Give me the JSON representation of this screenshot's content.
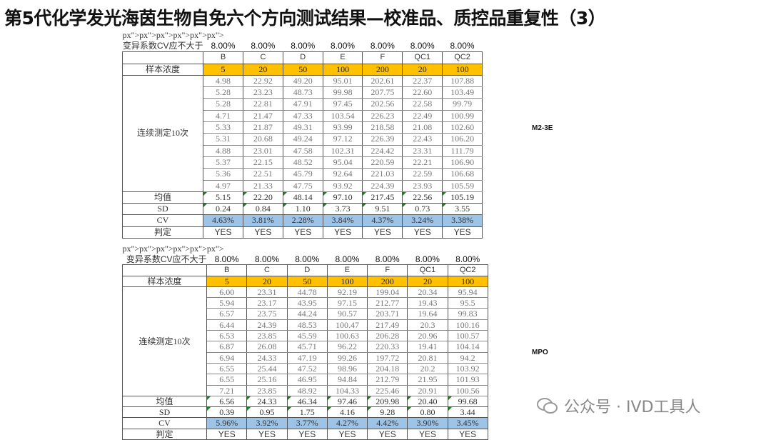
{
  "title": "第5代化学发光海茵生物自免六个方向测试结果—校准品、质控品重复性（3）",
  "watermark": "公众号 · IVD工具人",
  "tables": [
    {
      "side_label": "M2-3E",
      "cv_limit_label": "变异系数CV应不大于",
      "cv_limits": [
        "8.00%",
        "8.00%",
        "8.00%",
        "8.00%",
        "8.00%",
        "8.00%",
        "8.00%"
      ],
      "columns": [
        "B",
        "C",
        "D",
        "E",
        "F",
        "QC1",
        "QC2"
      ],
      "conc_label": "样本浓度",
      "concentrations": [
        "5",
        "20",
        "50",
        "100",
        "200",
        "20",
        "100"
      ],
      "repeat_label": "连续测定10次",
      "rows": [
        [
          "4.98",
          "22.92",
          "49.20",
          "95.01",
          "202.61",
          "22.37",
          "107.88"
        ],
        [
          "5.28",
          "23.23",
          "48.73",
          "99.98",
          "207.75",
          "22.60",
          "103.49"
        ],
        [
          "5.28",
          "22.81",
          "47.91",
          "97.45",
          "202.56",
          "22.58",
          "99.79"
        ],
        [
          "4.71",
          "21.47",
          "47.33",
          "103.54",
          "226.23",
          "22.49",
          "100.99"
        ],
        [
          "5.33",
          "21.87",
          "49.31",
          "93.99",
          "218.58",
          "21.08",
          "102.60"
        ],
        [
          "5.31",
          "20.68",
          "49.24",
          "97.12",
          "226.39",
          "22.43",
          "106.20"
        ],
        [
          "4.88",
          "23.01",
          "47.58",
          "102.31",
          "224.42",
          "23.31",
          "111.79"
        ],
        [
          "5.37",
          "22.15",
          "48.52",
          "95.04",
          "220.59",
          "22.21",
          "106.90"
        ],
        [
          "5.36",
          "22.51",
          "45.79",
          "92.64",
          "221.03",
          "22.59",
          "106.68"
        ],
        [
          "4.97",
          "21.33",
          "47.75",
          "93.92",
          "224.39",
          "23.93",
          "105.59"
        ]
      ],
      "mean_label": "均值",
      "mean": [
        "5.15",
        "22.20",
        "48.14",
        "97.10",
        "217.45",
        "22.56",
        "105.19"
      ],
      "sd_label": "SD",
      "sd": [
        "0.24",
        "0.84",
        "1.10",
        "3.73",
        "9.51",
        "0.73",
        "3.55"
      ],
      "cv_label": "CV",
      "cv": [
        "4.63%",
        "3.81%",
        "2.28%",
        "3.84%",
        "4.37%",
        "3.24%",
        "3.38%"
      ],
      "judge_label": "判定",
      "judge": [
        "YES",
        "YES",
        "YES",
        "YES",
        "YES",
        "YES",
        "YES"
      ]
    },
    {
      "side_label": "MPO",
      "cv_limit_label": "变异系数CV应不大于",
      "cv_limits": [
        "8.00%",
        "8.00%",
        "8.00%",
        "8.00%",
        "8.00%",
        "8.00%",
        "8.00%"
      ],
      "columns": [
        "B",
        "C",
        "D",
        "E",
        "F",
        "QC1",
        "QC2"
      ],
      "conc_label": "样本浓度",
      "concentrations": [
        "5",
        "20",
        "50",
        "100",
        "200",
        "20",
        "100"
      ],
      "repeat_label": "连续测定10次",
      "rows": [
        [
          "6.00",
          "23.31",
          "44.78",
          "92.19",
          "199.04",
          "20.34",
          "95.94"
        ],
        [
          "5.94",
          "23.17",
          "43.95",
          "97.15",
          "212.77",
          "19.43",
          "95.5"
        ],
        [
          "6.57",
          "23.75",
          "44.24",
          "90.57",
          "203.71",
          "19.64",
          "99.83"
        ],
        [
          "6.44",
          "24.39",
          "48.53",
          "100.47",
          "217.49",
          "20.3",
          "100.16"
        ],
        [
          "6.53",
          "23.85",
          "45.59",
          "100.63",
          "206.28",
          "20.96",
          "100.57"
        ],
        [
          "6.87",
          "26.08",
          "45.71",
          "96.22",
          "220.33",
          "19.41",
          "104.14"
        ],
        [
          "6.94",
          "24.33",
          "47.19",
          "99.26",
          "197.72",
          "20.81",
          "94.2"
        ],
        [
          "6.55",
          "25.44",
          "47.52",
          "98.96",
          "204.18",
          "20.2",
          "103.92"
        ],
        [
          "6.55",
          "25.16",
          "46.95",
          "94.84",
          "212.79",
          "21.95",
          "101.93"
        ],
        [
          "7.21",
          "23.85",
          "48.92",
          "104.33",
          "225.46",
          "20.91",
          "100.56"
        ]
      ],
      "mean_label": "均值",
      "mean": [
        "6.56",
        "24.33",
        "46.34",
        "97.46",
        "209.98",
        "20.40",
        "99.68"
      ],
      "sd_label": "SD",
      "sd": [
        "0.39",
        "0.95",
        "1.75",
        "4.16",
        "9.28",
        "0.80",
        "3.44"
      ],
      "cv_label": "CV",
      "cv": [
        "5.96%",
        "3.92%",
        "3.77%",
        "4.27%",
        "4.42%",
        "3.90%",
        "3.45%"
      ],
      "judge_label": "判定",
      "judge": [
        "YES",
        "YES",
        "YES",
        "YES",
        "YES",
        "YES",
        "YES"
      ]
    }
  ]
}
